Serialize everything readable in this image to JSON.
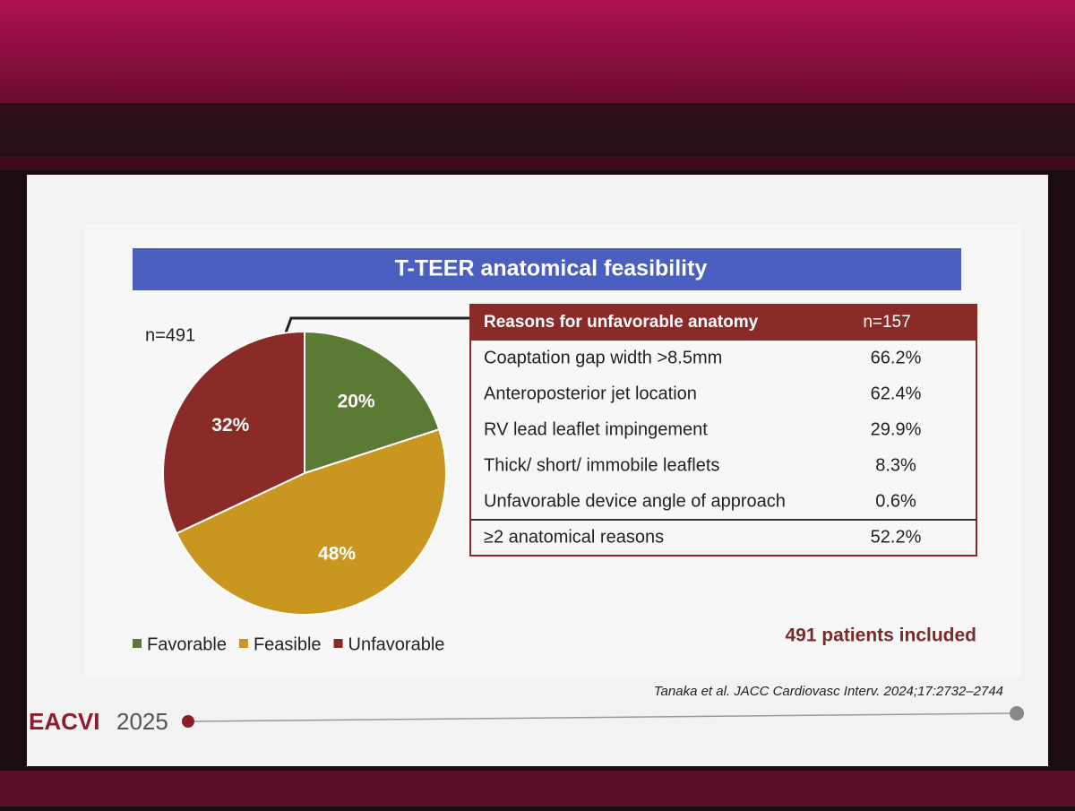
{
  "slide": {
    "title": "T-TEER anatomical feasibility",
    "note": "491 patients included",
    "citation": "Tanaka et al. JACC Cardiovasc Interv. 2024;17:2732–2744",
    "brand": "EACVI",
    "year": "2025"
  },
  "chart_data": {
    "type": "pie",
    "annotation": "n=491",
    "categories": [
      "Favorable",
      "Feasible",
      "Unfavorable"
    ],
    "values": [
      20,
      48,
      32
    ],
    "value_labels": [
      "20%",
      "48%",
      "32%"
    ],
    "colors": [
      "#5b7a33",
      "#c9971f",
      "#8a2b27"
    ],
    "legend": "bottom-left"
  },
  "table": {
    "header": [
      "Reasons for unfavorable anatomy",
      "n=157"
    ],
    "rows": [
      [
        "Coaptation gap width >8.5mm",
        "66.2%"
      ],
      [
        "Anteroposterior jet location",
        "62.4%"
      ],
      [
        "RV lead leaflet impingement",
        "29.9%"
      ],
      [
        "Thick/ short/ immobile leaflets",
        "8.3%"
      ],
      [
        "Unfavorable device angle of approach",
        "0.6%"
      ],
      [
        "≥2 anatomical reasons",
        "52.2%"
      ]
    ]
  }
}
